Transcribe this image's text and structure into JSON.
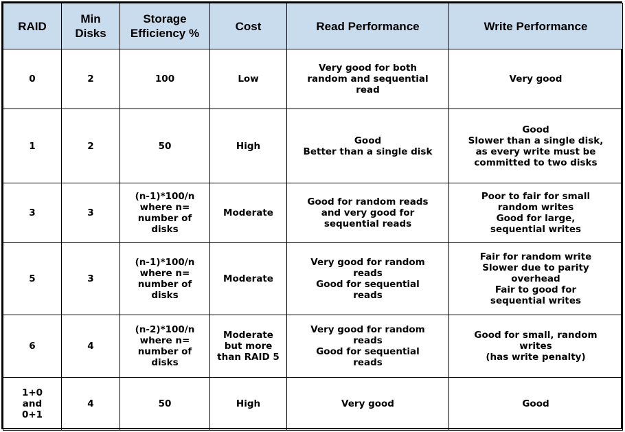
{
  "table": {
    "headers": [
      "RAID",
      "Min\nDisks",
      "Storage\nEfficiency %",
      "Cost",
      "Read Performance",
      "Write Performance"
    ],
    "rows": [
      [
        "0",
        "2",
        "100",
        "Low",
        "Very good for both\nrandom and sequential\nread",
        "Very good"
      ],
      [
        "1",
        "2",
        "50",
        "High",
        "Good\nBetter than a single disk",
        "Good\nSlower than a single disk,\nas every write must be\ncommitted to two disks"
      ],
      [
        "3",
        "3",
        "(n-1)*100/n\nwhere n=\nnumber of\ndisks",
        "Moderate",
        "Good for random reads\nand very good for\nsequential reads",
        "Poor to fair for small\nrandom writes\nGood for large,\nsequential writes"
      ],
      [
        "5",
        "3",
        "(n-1)*100/n\nwhere n=\nnumber of\ndisks",
        "Moderate",
        "Very good for random\nreads\nGood for sequential\nreads",
        "Fair for random write\nSlower due to parity\noverhead\nFair to good for\nsequential writes"
      ],
      [
        "6",
        "4",
        "(n-2)*100/n\nwhere n=\nnumber of\ndisks",
        "Moderate\nbut more\nthan RAID 5",
        "Very good for random\nreads\nGood for sequential\nreads",
        "Good for small, random\nwrites\n(has write penalty)"
      ],
      [
        "1+0\nand\n0+1",
        "4",
        "50",
        "High",
        "Very good",
        "Good"
      ]
    ]
  }
}
